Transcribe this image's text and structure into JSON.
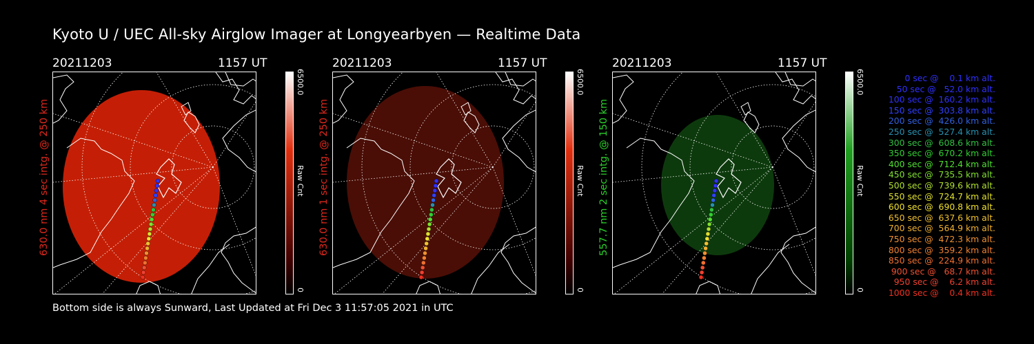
{
  "title": "Kyoto U / UEC All-sky Airglow Imager at Longyearbyen — Realtime Data",
  "footer": "Bottom side is always Sunward, Last Updated at Fri Dec  3 11:57:05 2021 in UTC",
  "panels": [
    {
      "date": "20211203",
      "time": "1157 UT",
      "ylabel": "630.0 nm 4 sec intg. @ 250 km",
      "ylabel_color": "#e0281c",
      "colorbar_max": "6500.0",
      "colorbar_min": "0",
      "colorbar_label": "Raw Cnt",
      "colorbar_color": "#e03010",
      "glow_color": "#c41f06"
    },
    {
      "date": "20211203",
      "time": "1157 UT",
      "ylabel": "630.0 nm 1 sec intg. @ 250 km",
      "ylabel_color": "#e0281c",
      "colorbar_max": "6500.0",
      "colorbar_min": "0",
      "colorbar_label": "Raw Cnt",
      "colorbar_color": "#e03010",
      "glow_color": "#4a0e06"
    },
    {
      "date": "20211203",
      "time": "1157 UT",
      "ylabel": "557.7 nm 2 sec intg. @ 150 km",
      "ylabel_color": "#2bd02b",
      "colorbar_max": "6500.0",
      "colorbar_min": "0",
      "colorbar_label": "Raw Cnt",
      "colorbar_color": "#20a020",
      "glow_color": "#0d3a0d"
    }
  ],
  "legend": [
    {
      "text": "   0 sec @    0.1 km alt.",
      "color": "#3030ff"
    },
    {
      "text": "  50 sec @   52.0 km alt.",
      "color": "#3030ff"
    },
    {
      "text": " 100 sec @  160.2 km alt.",
      "color": "#3030ff"
    },
    {
      "text": " 150 sec @  303.8 km alt.",
      "color": "#3040ff"
    },
    {
      "text": " 200 sec @  426.0 km alt.",
      "color": "#3060e0"
    },
    {
      "text": " 250 sec @  527.4 km alt.",
      "color": "#2890b0"
    },
    {
      "text": " 300 sec @  608.6 km alt.",
      "color": "#30c040"
    },
    {
      "text": " 350 sec @  670.2 km alt.",
      "color": "#30d030"
    },
    {
      "text": " 400 sec @  712.4 km alt.",
      "color": "#50e030"
    },
    {
      "text": " 450 sec @  735.5 km alt.",
      "color": "#80e030"
    },
    {
      "text": " 500 sec @  739.6 km alt.",
      "color": "#b0e030"
    },
    {
      "text": " 550 sec @  724.7 km alt.",
      "color": "#e0e030"
    },
    {
      "text": " 600 sec @  690.8 km alt.",
      "color": "#f0e030"
    },
    {
      "text": " 650 sec @  637.6 km alt.",
      "color": "#f0c030"
    },
    {
      "text": " 700 sec @  564.9 km alt.",
      "color": "#f0b030"
    },
    {
      "text": " 750 sec @  472.3 km alt.",
      "color": "#f09030"
    },
    {
      "text": " 800 sec @  359.2 km alt.",
      "color": "#f08030"
    },
    {
      "text": " 850 sec @  224.9 km alt.",
      "color": "#f07030"
    },
    {
      "text": " 900 sec @   68.7 km alt.",
      "color": "#f05030"
    },
    {
      "text": " 950 sec @    6.2 km alt.",
      "color": "#f04030"
    },
    {
      "text": "1000 sec @    0.4 km alt.",
      "color": "#f03020"
    }
  ]
}
